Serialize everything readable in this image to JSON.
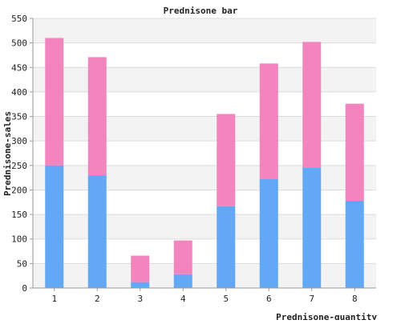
{
  "chart_data": {
    "type": "bar",
    "stacked": true,
    "title": "Prednisone bar",
    "xlabel": "Prednisone-quantity",
    "ylabel": "Prednisone-sales",
    "ylim": [
      0,
      550
    ],
    "yticks": [
      0,
      50,
      100,
      150,
      200,
      250,
      300,
      350,
      400,
      450,
      500,
      550
    ],
    "categories": [
      "1",
      "2",
      "3",
      "4",
      "5",
      "6",
      "7",
      "8"
    ],
    "series": [
      {
        "values": [
          250,
          230,
          12,
          28,
          167,
          222,
          246,
          178
        ],
        "color": "#62a8f5"
      },
      {
        "values": [
          260,
          241,
          54,
          69,
          188,
          236,
          256,
          198
        ],
        "color": "#f285bd"
      }
    ],
    "grid": true,
    "band_colors": [
      "#f3f3f3",
      "#ffffff"
    ],
    "legend": "none"
  }
}
